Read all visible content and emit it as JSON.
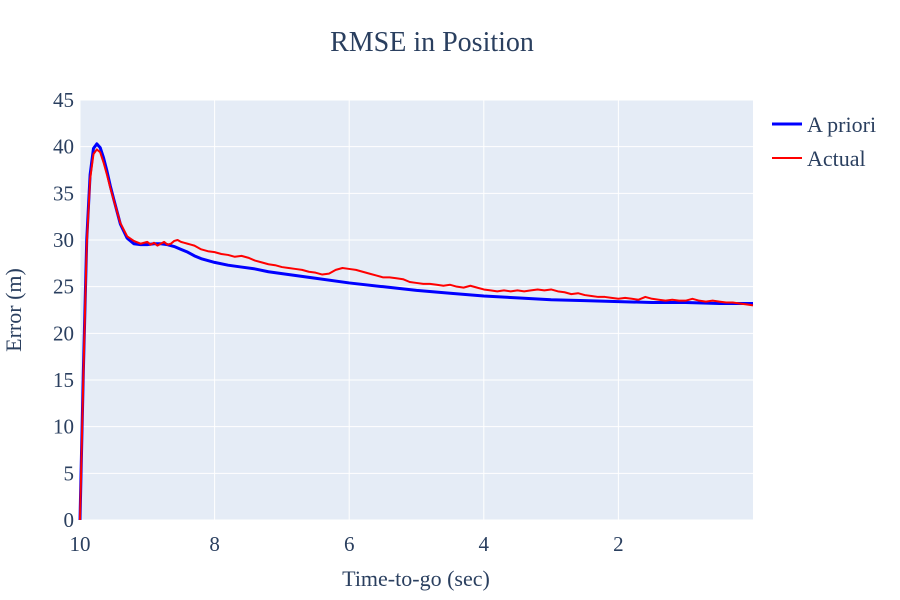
{
  "chart_data": {
    "type": "line",
    "title": "RMSE in Position",
    "xlabel": "Time-to-go (sec)",
    "ylabel": "Error (m)",
    "xlim": [
      10,
      0
    ],
    "ylim": [
      0,
      45
    ],
    "x_reversed": true,
    "xticks": [
      10,
      8,
      6,
      4,
      2
    ],
    "xtick_labels": [
      "10",
      "8",
      "6",
      "4",
      "2"
    ],
    "yticks": [
      0,
      5,
      10,
      15,
      20,
      25,
      30,
      35,
      40,
      45
    ],
    "ytick_labels": [
      "0",
      "5",
      "10",
      "15",
      "20",
      "25",
      "30",
      "35",
      "40",
      "45"
    ],
    "grid": true,
    "legend_position": "top-right, outside plot",
    "background_color": "#e5ecf6",
    "series": [
      {
        "name": "A priori",
        "color": "#0000ff",
        "x": [
          10.0,
          9.95,
          9.9,
          9.85,
          9.8,
          9.75,
          9.7,
          9.65,
          9.6,
          9.55,
          9.5,
          9.4,
          9.3,
          9.2,
          9.1,
          9.0,
          8.9,
          8.8,
          8.7,
          8.6,
          8.5,
          8.4,
          8.3,
          8.2,
          8.0,
          7.8,
          7.6,
          7.4,
          7.2,
          7.0,
          6.5,
          6.0,
          5.5,
          5.0,
          4.5,
          4.0,
          3.5,
          3.0,
          2.5,
          2.0,
          1.5,
          1.0,
          0.5,
          0.0
        ],
        "y": [
          0.0,
          16.0,
          30.0,
          37.0,
          39.8,
          40.3,
          39.9,
          38.8,
          37.4,
          35.8,
          34.4,
          31.7,
          30.2,
          29.6,
          29.5,
          29.5,
          29.6,
          29.6,
          29.5,
          29.3,
          29.0,
          28.7,
          28.3,
          28.0,
          27.6,
          27.3,
          27.1,
          26.9,
          26.6,
          26.4,
          25.9,
          25.4,
          25.0,
          24.6,
          24.3,
          24.0,
          23.8,
          23.6,
          23.5,
          23.4,
          23.3,
          23.3,
          23.2,
          23.2
        ]
      },
      {
        "name": "Actual",
        "color": "#ff0000",
        "x": [
          10.0,
          9.95,
          9.9,
          9.85,
          9.8,
          9.75,
          9.7,
          9.65,
          9.6,
          9.55,
          9.5,
          9.4,
          9.3,
          9.2,
          9.1,
          9.0,
          8.95,
          8.9,
          8.85,
          8.8,
          8.75,
          8.7,
          8.65,
          8.6,
          8.55,
          8.5,
          8.45,
          8.4,
          8.35,
          8.3,
          8.25,
          8.2,
          8.1,
          8.0,
          7.9,
          7.8,
          7.7,
          7.6,
          7.5,
          7.4,
          7.3,
          7.2,
          7.1,
          7.0,
          6.9,
          6.8,
          6.7,
          6.6,
          6.5,
          6.4,
          6.3,
          6.2,
          6.1,
          6.0,
          5.9,
          5.8,
          5.7,
          5.6,
          5.5,
          5.4,
          5.3,
          5.2,
          5.1,
          5.0,
          4.9,
          4.8,
          4.7,
          4.6,
          4.5,
          4.4,
          4.3,
          4.2,
          4.1,
          4.0,
          3.9,
          3.8,
          3.7,
          3.6,
          3.5,
          3.4,
          3.3,
          3.2,
          3.1,
          3.0,
          2.9,
          2.8,
          2.7,
          2.6,
          2.5,
          2.4,
          2.3,
          2.2,
          2.1,
          2.0,
          1.9,
          1.8,
          1.7,
          1.6,
          1.5,
          1.4,
          1.3,
          1.2,
          1.1,
          1.0,
          0.9,
          0.8,
          0.7,
          0.6,
          0.5,
          0.4,
          0.3,
          0.2,
          0.1,
          0.0
        ],
        "y": [
          0.0,
          15.5,
          29.5,
          36.5,
          39.2,
          39.7,
          39.4,
          38.3,
          37.0,
          35.6,
          34.3,
          31.8,
          30.4,
          29.9,
          29.6,
          29.8,
          29.5,
          29.7,
          29.4,
          29.6,
          29.8,
          29.5,
          29.6,
          29.9,
          30.0,
          29.8,
          29.7,
          29.6,
          29.5,
          29.4,
          29.2,
          29.0,
          28.8,
          28.7,
          28.5,
          28.4,
          28.2,
          28.3,
          28.1,
          27.8,
          27.6,
          27.4,
          27.3,
          27.1,
          27.0,
          26.9,
          26.8,
          26.6,
          26.5,
          26.3,
          26.4,
          26.8,
          27.0,
          26.9,
          26.8,
          26.6,
          26.4,
          26.2,
          26.0,
          26.0,
          25.9,
          25.8,
          25.5,
          25.4,
          25.3,
          25.3,
          25.2,
          25.1,
          25.2,
          25.0,
          24.9,
          25.1,
          24.9,
          24.7,
          24.6,
          24.5,
          24.6,
          24.5,
          24.6,
          24.5,
          24.6,
          24.7,
          24.6,
          24.7,
          24.5,
          24.4,
          24.2,
          24.3,
          24.1,
          24.0,
          23.9,
          23.9,
          23.8,
          23.7,
          23.8,
          23.7,
          23.6,
          23.9,
          23.7,
          23.6,
          23.5,
          23.6,
          23.5,
          23.5,
          23.7,
          23.5,
          23.4,
          23.5,
          23.4,
          23.3,
          23.3,
          23.2,
          23.1,
          23.0
        ]
      }
    ]
  }
}
